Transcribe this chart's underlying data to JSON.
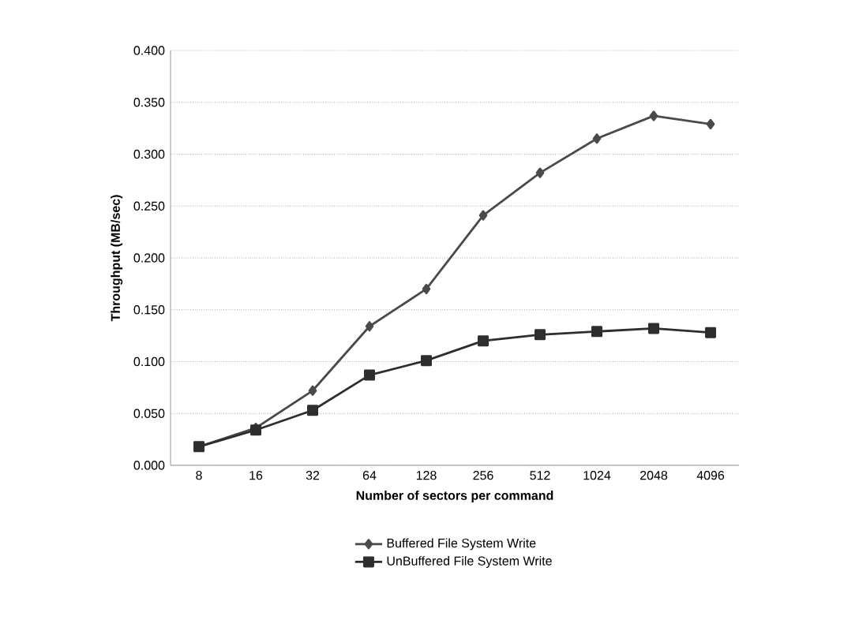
{
  "chart_data": {
    "type": "line",
    "xlabel": "Number of sectors per command",
    "ylabel": "Throughput (MB/sec)",
    "categories": [
      "8",
      "16",
      "32",
      "64",
      "128",
      "256",
      "512",
      "1024",
      "2048",
      "4096"
    ],
    "series": [
      {
        "name": "Buffered File System Write",
        "color": "#4a4a4a",
        "marker": "diamond",
        "values": [
          0.018,
          0.036,
          0.072,
          0.134,
          0.17,
          0.241,
          0.282,
          0.315,
          0.337,
          0.329
        ]
      },
      {
        "name": "UnBuffered File System Write",
        "color": "#2e2e2e",
        "marker": "square",
        "values": [
          0.018,
          0.034,
          0.053,
          0.087,
          0.101,
          0.12,
          0.126,
          0.129,
          0.132,
          0.128
        ]
      }
    ],
    "ylim": [
      0,
      0.4
    ],
    "yticks": [
      {
        "value": 0,
        "label": "0.000"
      },
      {
        "value": 0.05,
        "label": "0.050"
      },
      {
        "value": 0.1,
        "label": "0.100"
      },
      {
        "value": 0.15,
        "label": "0.150"
      },
      {
        "value": 0.2,
        "label": "0.200"
      },
      {
        "value": 0.25,
        "label": "0.250"
      },
      {
        "value": 0.3,
        "label": "0.300"
      },
      {
        "value": 0.35,
        "label": "0.350"
      },
      {
        "value": 0.4,
        "label": "0.400"
      }
    ],
    "grid": "y",
    "legend": "bottom",
    "line_style": "solid"
  }
}
